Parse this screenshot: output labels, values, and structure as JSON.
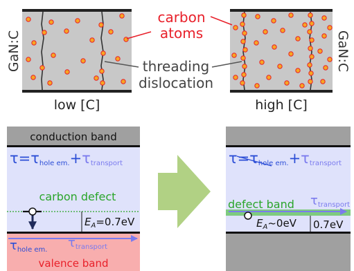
{
  "labels": {
    "carbon_atoms_line1": "carbon",
    "carbon_atoms_line2": "atoms",
    "threading_line1": "threading",
    "threading_line2": "dislocation",
    "gan_c": "GaN:C",
    "low_c": "low [C]",
    "high_c": "high [C]"
  },
  "left_band": {
    "conduction_band": "conduction band",
    "valence_band": "valence band",
    "tau": "τ",
    "equals": "=",
    "tau_sym": "τ",
    "sub_hole_em": "hole em.",
    "plus": "+",
    "sub_transport": "transport",
    "carbon_defect": "carbon defect",
    "ea_E": "E",
    "ea_A": "A",
    "ea_value": "=0.7eV"
  },
  "right_band": {
    "tau": "τ",
    "equals": "=",
    "tau_sym": "τ",
    "sub_hole_em": "hole em.",
    "plus": "+",
    "sub_transport": "transport",
    "defect_band": "defect band",
    "ea_E": "E",
    "ea_A": "A",
    "ea_value": "~0eV",
    "gap_value": "0.7eV"
  },
  "colors": {
    "accent_red": "#e8202a",
    "carbon_fill": "#f6a623",
    "crystal_gray": "#c8c8c8",
    "band_gray": "#a0a0a0",
    "light_blue": "#dfe2fb",
    "pink": "#f8aeae",
    "transport_blue": "#7b7bee",
    "tau_blue": "#2b4dd6",
    "green": "#2aa52a",
    "arrow_green": "#b1d184"
  }
}
